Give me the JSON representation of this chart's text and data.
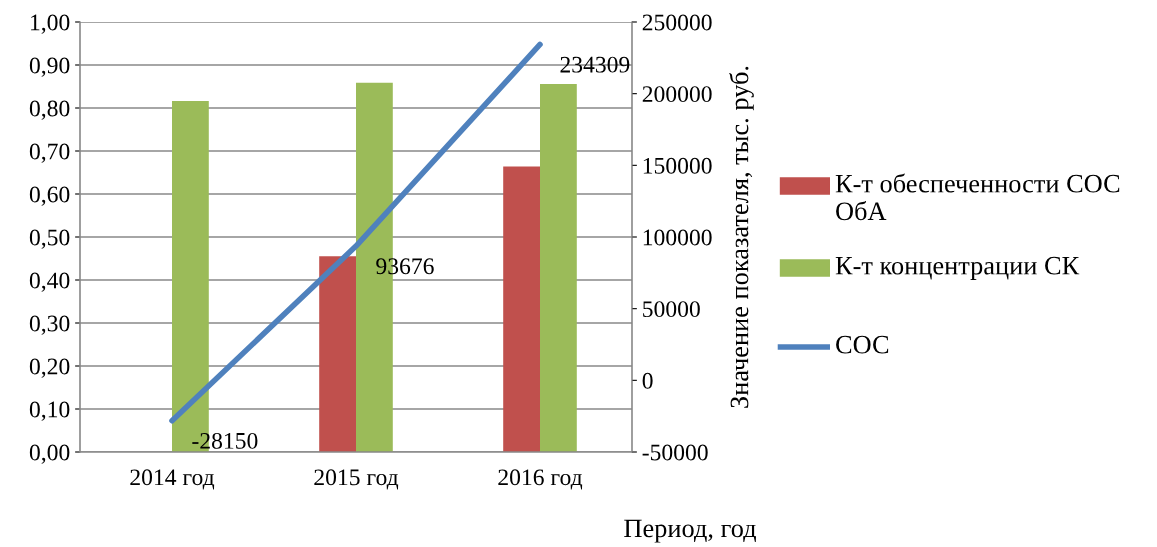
{
  "chart_data": {
    "type": "bar",
    "categories": [
      "2014 год",
      "2015 год",
      "2016 год"
    ],
    "series": [
      {
        "name": "К-т обеспеченности СОС ОбА",
        "color": "#c0504d",
        "values": [
          null,
          0.455,
          0.664
        ]
      },
      {
        "name": "К-т концентрации СК",
        "color": "#9bbb59",
        "values": [
          0.816,
          0.859,
          0.856
        ]
      },
      {
        "name": "СОС",
        "type": "line",
        "axis": "y2",
        "color": "#4f81bd",
        "values": [
          -28150,
          93676,
          234309
        ],
        "value_labels": [
          "-28150",
          "93676",
          "234309"
        ]
      }
    ],
    "xlabel": "Период, год",
    "y2label": "Значение показателя, тыс. руб.",
    "ylim": [
      0,
      1.0
    ],
    "yticks": [
      {
        "value": 0,
        "label": "0,00"
      },
      {
        "value": 0.1,
        "label": "0,10"
      },
      {
        "value": 0.2,
        "label": "0,20"
      },
      {
        "value": 0.3,
        "label": "0,30"
      },
      {
        "value": 0.4,
        "label": "0,40"
      },
      {
        "value": 0.5,
        "label": "0,50"
      },
      {
        "value": 0.6,
        "label": "0,60"
      },
      {
        "value": 0.7,
        "label": "0,70"
      },
      {
        "value": 0.8,
        "label": "0,80"
      },
      {
        "value": 0.9,
        "label": "0,90"
      },
      {
        "value": 1.0,
        "label": "1,00"
      }
    ],
    "y2lim": [
      -50000,
      250000
    ],
    "y2ticks": [
      -50000,
      0,
      50000,
      100000,
      150000,
      200000,
      250000
    ],
    "grid": "y",
    "legend": "right"
  }
}
